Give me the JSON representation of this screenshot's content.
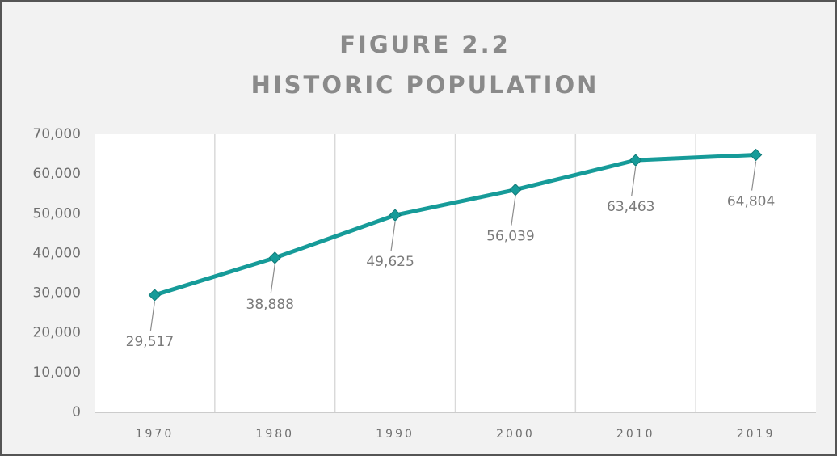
{
  "chart_data": {
    "type": "line",
    "title": "FIGURE 2.2",
    "subtitle": "HISTORIC POPULATION",
    "categories": [
      "1970",
      "1980",
      "1990",
      "2000",
      "2010",
      "2019"
    ],
    "values": [
      29517,
      38888,
      49625,
      56039,
      63463,
      64804
    ],
    "value_labels": [
      "29,517",
      "38,888",
      "49,625",
      "56,039",
      "63,463",
      "64,804"
    ],
    "color": "#169b99",
    "ylim": [
      0,
      70000
    ],
    "yticks": [
      0,
      {
        "value": 10000,
        "label": "10,000"
      },
      {
        "value": 20000,
        "label": "20,000"
      },
      {
        "value": 30000,
        "label": "30,000"
      },
      {
        "value": 40000,
        "label": "40,000"
      },
      {
        "value": 50000,
        "label": "50,000"
      },
      {
        "value": 60000,
        "label": "60,000"
      },
      {
        "value": 70000,
        "label": "70,000"
      }
    ],
    "grid": true
  }
}
